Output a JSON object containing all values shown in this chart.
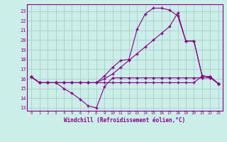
{
  "xlabel": "Windchill (Refroidissement éolien,°C)",
  "xlim": [
    -0.5,
    23.5
  ],
  "ylim": [
    12.7,
    23.7
  ],
  "xticks": [
    0,
    1,
    2,
    3,
    4,
    5,
    6,
    7,
    8,
    9,
    10,
    11,
    12,
    13,
    14,
    15,
    16,
    17,
    18,
    19,
    20,
    21,
    22,
    23
  ],
  "yticks": [
    13,
    14,
    15,
    16,
    17,
    18,
    19,
    20,
    21,
    22,
    23
  ],
  "bg_color": "#cceee8",
  "line_color": "#880088",
  "grid_color": "#aacccc",
  "line1_x": [
    0,
    1,
    2,
    3,
    4,
    5,
    6,
    7,
    8,
    9,
    10,
    11,
    12,
    13,
    14,
    15,
    16,
    17,
    18,
    19,
    20,
    21,
    22,
    23
  ],
  "line1_y": [
    16.2,
    15.6,
    15.6,
    15.6,
    15.0,
    14.5,
    13.9,
    13.2,
    13.0,
    15.2,
    16.1,
    16.1,
    16.1,
    16.1,
    16.1,
    16.1,
    16.1,
    16.1,
    16.1,
    16.1,
    16.1,
    16.1,
    16.1,
    15.5
  ],
  "line2_x": [
    0,
    1,
    2,
    3,
    4,
    5,
    6,
    7,
    8,
    9,
    10,
    11,
    12,
    13,
    14,
    15,
    16,
    17,
    18,
    19,
    20,
    21,
    22,
    23
  ],
  "line2_y": [
    16.2,
    15.6,
    15.6,
    15.6,
    15.6,
    15.6,
    15.6,
    15.6,
    15.6,
    15.6,
    15.6,
    15.6,
    15.6,
    15.6,
    15.6,
    15.6,
    15.6,
    15.6,
    15.6,
    15.6,
    15.6,
    16.3,
    16.2,
    15.5
  ],
  "line3_x": [
    0,
    1,
    2,
    3,
    4,
    5,
    6,
    7,
    8,
    9,
    10,
    11,
    12,
    13,
    14,
    15,
    16,
    17,
    18,
    19,
    20,
    21,
    22,
    23
  ],
  "line3_y": [
    16.2,
    15.6,
    15.6,
    15.6,
    15.6,
    15.6,
    15.6,
    15.6,
    15.6,
    16.3,
    17.2,
    17.9,
    18.0,
    21.1,
    22.7,
    23.3,
    23.3,
    23.1,
    22.5,
    19.9,
    19.9,
    16.3,
    16.2,
    15.5
  ],
  "line4_x": [
    0,
    1,
    2,
    3,
    4,
    5,
    6,
    7,
    8,
    9,
    10,
    11,
    12,
    13,
    14,
    15,
    16,
    17,
    18,
    19,
    20,
    21,
    22,
    23
  ],
  "line4_y": [
    16.2,
    15.6,
    15.6,
    15.6,
    15.6,
    15.6,
    15.6,
    15.6,
    15.6,
    16.0,
    16.5,
    17.2,
    17.9,
    18.6,
    19.3,
    20.0,
    20.7,
    21.4,
    22.8,
    19.9,
    19.9,
    16.3,
    16.2,
    15.5
  ]
}
